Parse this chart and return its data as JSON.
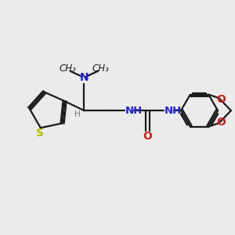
{
  "bg_color": "#ebebeb",
  "bond_color": "#1a1a1a",
  "N_color": "#2020cc",
  "O_color": "#cc2020",
  "S_color": "#b8b800",
  "H_color": "#707070",
  "line_width": 1.6,
  "font_size": 8.5,
  "fig_size": [
    3.0,
    3.0
  ],
  "dpi": 100,
  "xlim": [
    0,
    10
  ],
  "ylim": [
    0,
    10
  ]
}
